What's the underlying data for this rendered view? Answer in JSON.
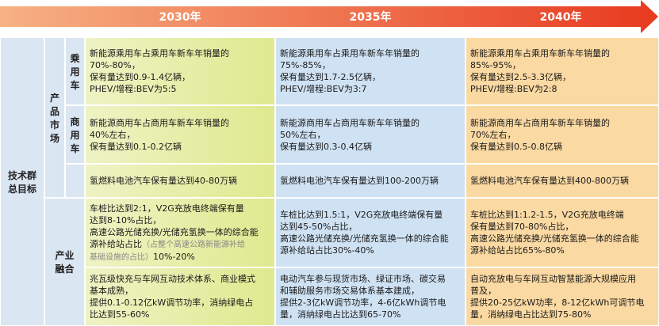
{
  "header": {
    "years": [
      "2030年",
      "2035年",
      "2040年"
    ]
  },
  "left_title": "技术群总目标",
  "groups": [
    {
      "label": "产品市场"
    },
    {
      "label": "产业融合"
    }
  ],
  "subrows": [
    {
      "label": "乘用车"
    },
    {
      "label": "商用车"
    }
  ],
  "rows": [
    [
      [
        [
          "新能源乘用车占乘用车新车年销量的"
        ],
        [
          "70%-80%，"
        ],
        [
          "保有量达到0.9-1.4亿辆，"
        ],
        [
          "PHEV/增程:BEV为5:5"
        ]
      ],
      [
        [
          "新能源乘用车占乘用车新车年销量的"
        ],
        [
          "75%-85%，"
        ],
        [
          "保有量达到1.7-2.5亿辆，"
        ],
        [
          "PHEV/增程:BEV为3:7"
        ]
      ],
      [
        [
          "新能源乘用车占乘用车新车年销量的"
        ],
        [
          "85%-95%，"
        ],
        [
          "保有量达到2.5-3.3亿辆，"
        ],
        [
          "PHEV/增程:BEV为2:8"
        ]
      ]
    ],
    [
      [
        [
          "新能源商用车占商用车新车年销量的"
        ],
        [
          "40%左右，"
        ],
        [
          "保有量达到0.1-0.2亿辆"
        ]
      ],
      [
        [
          "新能源商用车占商用车新车年销量的"
        ],
        [
          "50%左右，"
        ],
        [
          "保有量达到0.3-0.4亿辆"
        ]
      ],
      [
        [
          "新能源商用车占商用车新车年销量的"
        ],
        [
          "70%左右，"
        ],
        [
          "保有量达到0.5-0.8亿辆"
        ]
      ]
    ],
    [
      [
        [
          "氢燃料电池汽车保有量达到40-80万辆"
        ]
      ],
      [
        [
          "氢燃料电池汽车保有量达到100-200万辆"
        ]
      ],
      [
        [
          "氢燃料电池汽车保有量达到400-800万辆"
        ]
      ]
    ],
    [
      [
        [
          "车桩比达到2:1，V2G充放电终端保有量"
        ],
        [
          "达到8-10%占比，"
        ],
        [
          "高速公路光储充换/光储充氢换一体的综合能"
        ],
        [
          "源补给站占比",
          {
            "note": "（占整个高速公路新能源补给"
          }
        ],
        [
          {
            "note": "基础设施的占比）"
          },
          "10%-20%"
        ]
      ],
      [
        [
          "车桩比达到1.5:1，V2G充放电终端保有量"
        ],
        [
          "达到45-50%占比，"
        ],
        [
          "高速公路光储充换/光储充氢换一体的综合能"
        ],
        [
          "源补给站占比30%-40%"
        ]
      ],
      [
        [
          "车桩比达到1:1.2-1.5，V2G充放电终端"
        ],
        [
          "保有量达到70-80%占比，"
        ],
        [
          "高速公路光储充换/光储充氢换一体的综合能"
        ],
        [
          "源补给站占比65%-80%"
        ]
      ]
    ],
    [
      [
        [
          "兆瓦级快充与车网互动技术体系、商业模式"
        ],
        [
          "基本成熟，"
        ],
        [
          "提供0.1-0.12亿kW调节功率，消纳绿电占"
        ],
        [
          "比达到55-60%"
        ]
      ],
      [
        [
          "电动汽车参与现货市场、绿证市场、碳交易"
        ],
        [
          "和辅助服务市场交易体系基本建成，"
        ],
        [
          "提供2-3亿kW调节功率，4-6亿kWh调节电"
        ],
        [
          "量，消纳绿电占比达到65-70%"
        ]
      ],
      [
        [
          "自动充放电与车网互动智慧能源大规模应用"
        ],
        [
          "普及，"
        ],
        [
          "提供20-25亿kW功率，8-12亿kWh可调节电"
        ],
        [
          "量，消纳绿电占比达到75-80%"
        ]
      ]
    ]
  ]
}
